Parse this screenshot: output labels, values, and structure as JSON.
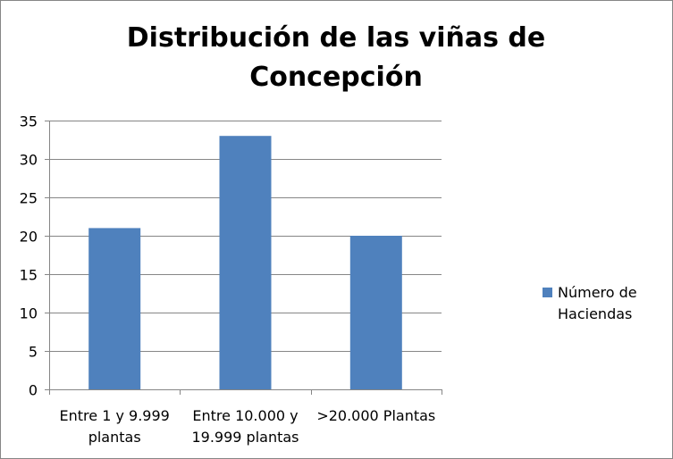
{
  "chart_data": {
    "type": "bar",
    "title_lines": [
      "Distribución de las viñas de",
      "Concepción"
    ],
    "categories": [
      [
        "Entre 1 y 9.999",
        "plantas"
      ],
      [
        "Entre 10.000 y",
        "19.999 plantas"
      ],
      [
        ">20.000 Plantas"
      ]
    ],
    "series": [
      {
        "name_lines": [
          "Número de",
          "Haciendas"
        ],
        "values": [
          21,
          33,
          20
        ],
        "color": "#4f81bd"
      }
    ],
    "ylim": [
      0,
      35
    ],
    "yticks": [
      0,
      5,
      10,
      15,
      20,
      25,
      30,
      35
    ],
    "grid": true,
    "legend_position": "right"
  }
}
